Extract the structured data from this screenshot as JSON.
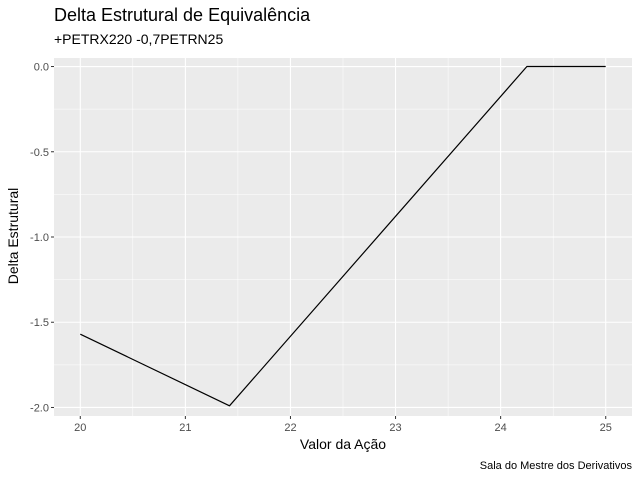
{
  "chart_data": {
    "type": "line",
    "title": "Delta Estrutural de Equivalência",
    "subtitle": "+PETRX220 -0,7PETRN25",
    "xlabel": "Valor da Ação",
    "ylabel": "Delta Estrutural",
    "caption": "Sala do Mestre dos Derivativos",
    "xlim": [
      19.75,
      25.25
    ],
    "ylim": [
      -2.05,
      0.05
    ],
    "x_ticks": [
      20,
      21,
      22,
      23,
      24,
      25
    ],
    "x_tick_labels": [
      "20",
      "21",
      "22",
      "23",
      "24",
      "25"
    ],
    "y_ticks": [
      0,
      -0.5,
      -1,
      -1.5,
      -2
    ],
    "y_tick_labels": [
      "0.0",
      "-0.5",
      "-1.0",
      "-1.5",
      "-2.0"
    ],
    "grid": true,
    "background": "#ebebeb",
    "line_color": "#000000",
    "series": [
      {
        "x": [
          20,
          21.42,
          24.25,
          25
        ],
        "y": [
          -1.57,
          -1.99,
          0,
          0
        ]
      }
    ]
  }
}
